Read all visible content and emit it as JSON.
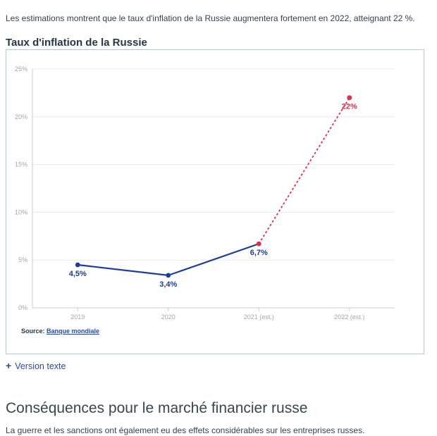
{
  "page": {
    "intro_text": "Les estimations montrent que le taux d'inflation de la Russie augmentera fortement en 2022, atteignant 22 %.",
    "version_texte": {
      "plus_icon": "+",
      "label": "Version texte"
    },
    "section_title": "Conséquences pour le marché financier russe",
    "section_text": "La guerre et les sanctions ont également eu des effets considérables sur les entreprises russes."
  },
  "figure": {
    "title": "Taux d'inflation de la Russie",
    "source_label": "Source:",
    "source_link_text": "Banque mondiale"
  },
  "chart_data": {
    "type": "line",
    "title": "Taux d'inflation de la Russie",
    "categories": [
      "2019",
      "2020",
      "2021 (est.)",
      "2022 (est.)"
    ],
    "values": [
      4.5,
      3.4,
      6.7,
      22
    ],
    "point_labels": [
      "4,5%",
      "3,4%",
      "6,7%",
      "22%"
    ],
    "series_note": "solid blue line = actual values; dashed red line = estimates starting at 2021 (est.)",
    "estimated_from_index": 2,
    "ylim": [
      0,
      25
    ],
    "ytick_step": 5,
    "ytick_labels": [
      "0%",
      "5%",
      "10%",
      "15%",
      "20%",
      "25%"
    ],
    "grid": true,
    "legend": "none",
    "colors": {
      "actual": "#1b3e9c",
      "estimate": "#e8294a",
      "grid": "#ececec",
      "axis": "#cccccc",
      "tick_text": "#a6a6a6"
    }
  }
}
